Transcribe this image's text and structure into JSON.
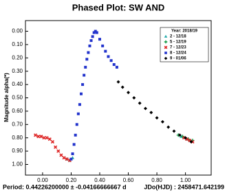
{
  "chart_data": {
    "type": "scatter",
    "title": "Phased Plot: SW AND",
    "y_label": "Magnitude alpha(*)",
    "footer_left": "Period: 0.44226200000 ± -0.04166666667 d",
    "footer_right": "JDo(HJD) : 2458471.642199",
    "legend_title": "Year: 2018/19",
    "legend_position": "upper right",
    "y_inverted": true,
    "xlim": [
      -0.12,
      1.18
    ],
    "ylim": [
      -0.08,
      1.08
    ],
    "xticks": [
      {
        "value": 0,
        "label": "0.00"
      },
      {
        "value": 0.2,
        "label": "0.20"
      },
      {
        "value": 0.4,
        "label": "0.40"
      },
      {
        "value": 0.6,
        "label": "0.60"
      },
      {
        "value": 0.8,
        "label": "0.80"
      },
      {
        "value": 1,
        "label": "1.00"
      }
    ],
    "yticks": [
      {
        "value": 0,
        "label": "0.00"
      },
      {
        "value": 0.1,
        "label": "0.10"
      },
      {
        "value": 0.2,
        "label": "0.20"
      },
      {
        "value": 0.3,
        "label": "0.30"
      },
      {
        "value": 0.4,
        "label": "0.40"
      },
      {
        "value": 0.5,
        "label": "0.50"
      },
      {
        "value": 0.6,
        "label": "0.60"
      },
      {
        "value": 0.7,
        "label": "0.70"
      },
      {
        "value": 0.8,
        "label": "0.80"
      },
      {
        "value": 0.9,
        "label": "0.90"
      },
      {
        "value": 1,
        "label": "1.00"
      }
    ],
    "series": [
      {
        "name": "2 - 12/18",
        "color": "#22aaaa",
        "marker": "triangle",
        "x": [
          0.17,
          0.19,
          0.21,
          0.97,
          1.01
        ],
        "values": [
          0.96,
          0.97,
          0.95,
          0.79,
          0.81
        ]
      },
      {
        "name": "5 - 12/19",
        "color": "#119944",
        "marker": "plus",
        "x": [
          0.95,
          0.98,
          1.02,
          1.05
        ],
        "values": [
          0.78,
          0.79,
          0.81,
          0.82
        ]
      },
      {
        "name": "7 - 12/23",
        "color": "#dd2222",
        "marker": "x",
        "x": [
          -0.05,
          -0.03,
          -0.01,
          0.01,
          0.03,
          0.05,
          0.07,
          0.09,
          0.11,
          0.13,
          0.15,
          0.17,
          0.19,
          0.99,
          1.01,
          1.03,
          1.05
        ],
        "values": [
          0.78,
          0.79,
          0.79,
          0.8,
          0.8,
          0.81,
          0.83,
          0.87,
          0.9,
          0.93,
          0.95,
          0.96,
          0.97,
          0.8,
          0.81,
          0.82,
          0.83
        ]
      },
      {
        "name": "8 - 12/24",
        "color": "#2233cc",
        "marker": "square",
        "x": [
          0.2,
          0.21,
          0.22,
          0.23,
          0.24,
          0.25,
          0.26,
          0.27,
          0.28,
          0.29,
          0.3,
          0.31,
          0.32,
          0.33,
          0.34,
          0.35,
          0.36,
          0.37,
          0.38,
          0.4,
          0.42,
          0.44,
          0.46,
          0.48,
          0.5,
          0.52
        ],
        "values": [
          0.96,
          0.92,
          0.85,
          0.78,
          0.7,
          0.62,
          0.55,
          0.47,
          0.4,
          0.33,
          0.27,
          0.21,
          0.16,
          0.11,
          0.07,
          0.04,
          0.01,
          0,
          0.01,
          0.06,
          0.11,
          0.15,
          0.19,
          0.22,
          0.25,
          0.27
        ]
      },
      {
        "name": "9 - 01/06",
        "color": "#000000",
        "marker": "diamond",
        "x": [
          0.53,
          0.56,
          0.6,
          0.64,
          0.68,
          0.72,
          0.76,
          0.8,
          0.84,
          0.88,
          0.92,
          0.96,
          1,
          1.04
        ],
        "values": [
          0.38,
          0.42,
          0.46,
          0.5,
          0.54,
          0.58,
          0.61,
          0.65,
          0.68,
          0.72,
          0.75,
          0.78,
          0.8,
          0.83
        ]
      }
    ]
  }
}
